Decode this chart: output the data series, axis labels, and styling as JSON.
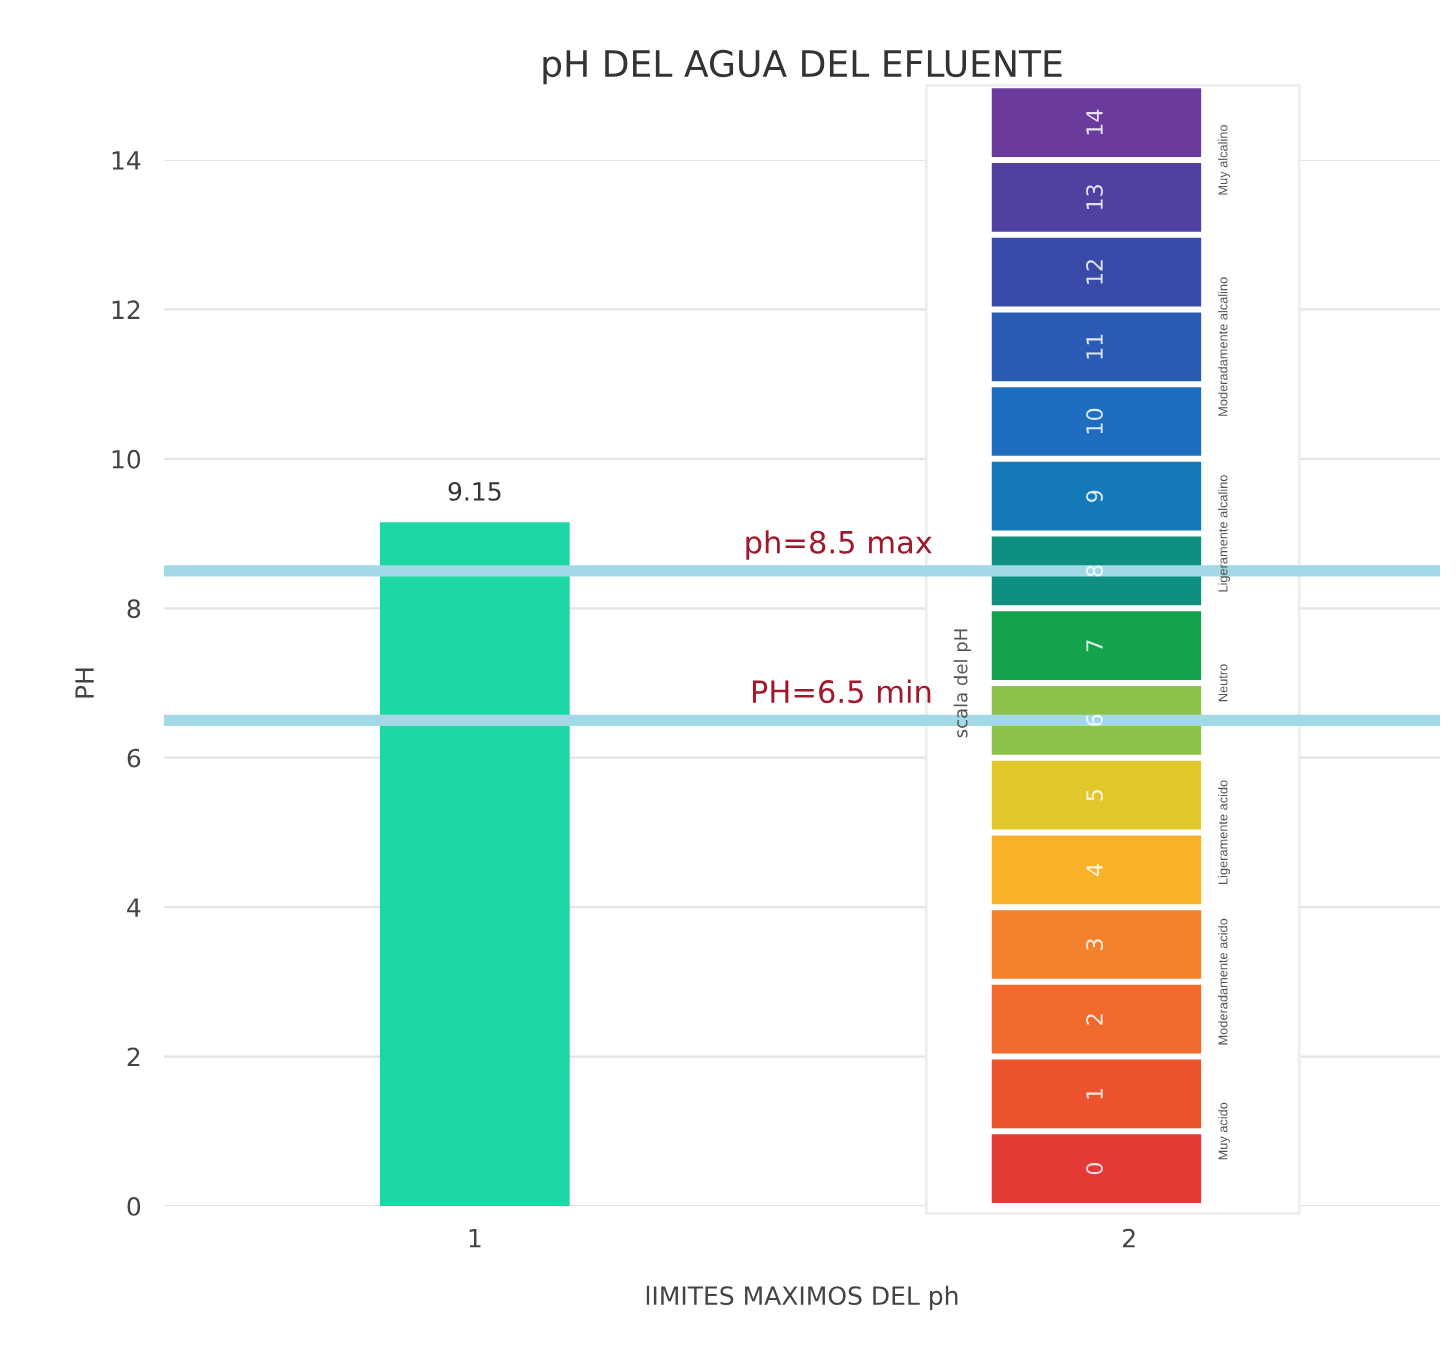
{
  "chart_data": {
    "type": "bar",
    "title": "pH DEL AGUA DEL EFLUENTE",
    "xlabel": "lIMITES MAXIMOS DEL ph",
    "ylabel": "PH",
    "categories": [
      "1",
      "2"
    ],
    "series": [
      {
        "color": "#1dd8a5",
        "values": [
          9.15,
          null
        ],
        "value_labels": [
          "9.15",
          null
        ]
      }
    ],
    "ylim": [
      0,
      14
    ],
    "yticks": [
      0,
      2,
      4,
      6,
      8,
      10,
      12,
      14
    ],
    "grid": "y",
    "legend": false,
    "ref_lines": [
      {
        "axis": "y",
        "value": 8.5,
        "label": "ph=8.5 max",
        "color": "#a3d9e6"
      },
      {
        "axis": "y",
        "value": 6.5,
        "label": "PH=6.5 min",
        "color": "#a3d9e6"
      }
    ],
    "annotations": [
      "0",
      "1",
      "2",
      "3",
      "4",
      "5",
      "6",
      "7",
      "8",
      "9",
      "10",
      "11",
      "12",
      "13",
      "14",
      "Muy acido",
      "Moderadamente acido",
      "Ligeramente acido",
      "Neutro",
      "Ligeramente alcalino",
      "Moderadamente alcalino",
      "Muy alcalino",
      "scala del pH"
    ]
  }
}
